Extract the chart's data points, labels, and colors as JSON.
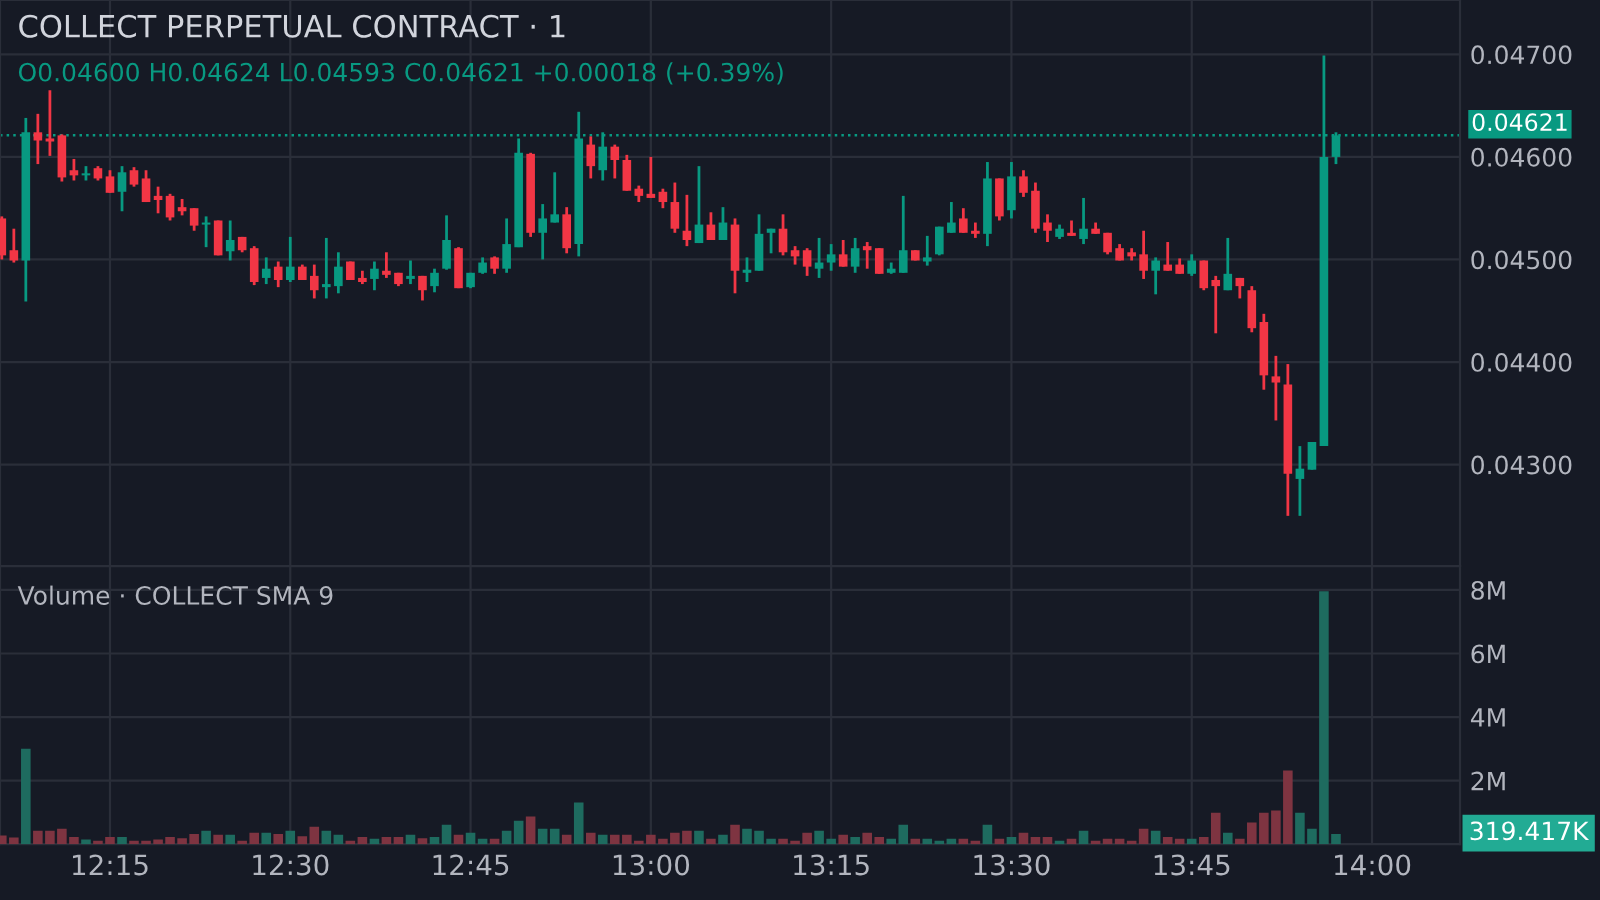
{
  "chart_data": [
    {
      "type": "candlestick",
      "title": "COLLECT PERPETUAL CONTRACT · 1",
      "annotations": [
        "O0.04600 H0.04624 L0.04593 C0.04621 +0.00018 (+0.39%)"
      ],
      "x": [
        12.1,
        12.1167,
        12.1333,
        12.15,
        12.1667,
        12.1833,
        12.2,
        12.2167,
        12.2333,
        12.25,
        12.2667,
        12.2833,
        12.3,
        12.3167,
        12.3333,
        12.35,
        12.3667,
        12.3833,
        12.4,
        12.4167,
        12.4333,
        12.45,
        12.4667,
        12.4833,
        12.5,
        12.5167,
        12.5333,
        12.55,
        12.5667,
        12.5833,
        12.6,
        12.6167,
        12.6333,
        12.65,
        12.6667,
        12.6833,
        12.7,
        12.7167,
        12.7333,
        12.75,
        12.7667,
        12.7833,
        12.8,
        12.8167,
        12.8333,
        12.85,
        12.8667,
        12.8833,
        12.9,
        12.9167,
        12.9333,
        12.95,
        12.9667,
        12.9833,
        13,
        13.0167,
        13.0333,
        13.05,
        13.0667,
        13.0833,
        13.1,
        13.1167,
        13.1333,
        13.15,
        13.1667,
        13.1833,
        13.2,
        13.2167,
        13.2333,
        13.25,
        13.2667,
        13.2833,
        13.3,
        13.3167,
        13.3333,
        13.35,
        13.3667,
        13.3833,
        13.4,
        13.4167,
        13.4333,
        13.45,
        13.4667,
        13.4833,
        13.5,
        13.5167,
        13.5333,
        13.55,
        13.5667,
        13.5833,
        13.6,
        13.6167,
        13.6333,
        13.65,
        13.6667,
        13.6833,
        13.7,
        13.7167,
        13.7333,
        13.75,
        13.7667,
        13.7833,
        13.8,
        13.8167,
        13.8333,
        13.85,
        13.8667,
        13.8833,
        13.9,
        13.9167,
        13.9333,
        13.95
      ],
      "ohlc": [
        [
          0.0454,
          0.04542,
          0.045,
          0.04504
        ],
        [
          0.04509,
          0.0453,
          0.04497,
          0.04499
        ],
        [
          0.04499,
          0.04638,
          0.04459,
          0.04624
        ],
        [
          0.04624,
          0.04642,
          0.04593,
          0.04616
        ],
        [
          0.04618,
          0.04665,
          0.04601,
          0.04615
        ],
        [
          0.04621,
          0.04622,
          0.04576,
          0.0458
        ],
        [
          0.04587,
          0.04598,
          0.04577,
          0.04582
        ],
        [
          0.04582,
          0.04591,
          0.04577,
          0.04584
        ],
        [
          0.04589,
          0.04591,
          0.04577,
          0.04579
        ],
        [
          0.04581,
          0.04587,
          0.04565,
          0.04565
        ],
        [
          0.04566,
          0.04591,
          0.04547,
          0.04585
        ],
        [
          0.04587,
          0.0459,
          0.04571,
          0.04573
        ],
        [
          0.04579,
          0.04587,
          0.04556,
          0.04556
        ],
        [
          0.04562,
          0.04571,
          0.04545,
          0.04558
        ],
        [
          0.04562,
          0.04564,
          0.04538,
          0.04541
        ],
        [
          0.04551,
          0.04559,
          0.04543,
          0.04547
        ],
        [
          0.0455,
          0.0455,
          0.04528,
          0.04533
        ],
        [
          0.04534,
          0.04542,
          0.04512,
          0.04536
        ],
        [
          0.04538,
          0.04538,
          0.04504,
          0.04504
        ],
        [
          0.04508,
          0.04538,
          0.04499,
          0.04519
        ],
        [
          0.04522,
          0.04522,
          0.04507,
          0.04509
        ],
        [
          0.04511,
          0.04513,
          0.04475,
          0.04478
        ],
        [
          0.04482,
          0.04502,
          0.04476,
          0.04491
        ],
        [
          0.04493,
          0.04498,
          0.04473,
          0.0448
        ],
        [
          0.0448,
          0.04522,
          0.04478,
          0.04493
        ],
        [
          0.04493,
          0.04495,
          0.0448,
          0.0448
        ],
        [
          0.04484,
          0.04495,
          0.04462,
          0.0447
        ],
        [
          0.04473,
          0.04521,
          0.04462,
          0.04476
        ],
        [
          0.04474,
          0.04507,
          0.04467,
          0.04493
        ],
        [
          0.04498,
          0.04498,
          0.0448,
          0.0448
        ],
        [
          0.04482,
          0.04489,
          0.04476,
          0.04478
        ],
        [
          0.04481,
          0.04498,
          0.0447,
          0.04491
        ],
        [
          0.04489,
          0.04507,
          0.04482,
          0.04485
        ],
        [
          0.04487,
          0.04487,
          0.04474,
          0.04476
        ],
        [
          0.04481,
          0.04499,
          0.04476,
          0.04484
        ],
        [
          0.04484,
          0.04484,
          0.0446,
          0.0447
        ],
        [
          0.04474,
          0.04491,
          0.04468,
          0.04487
        ],
        [
          0.04491,
          0.04543,
          0.0449,
          0.04519
        ],
        [
          0.04511,
          0.04512,
          0.04472,
          0.04472
        ],
        [
          0.04473,
          0.04487,
          0.04472,
          0.04487
        ],
        [
          0.04487,
          0.04502,
          0.04486,
          0.04497
        ],
        [
          0.04502,
          0.04503,
          0.04486,
          0.04491
        ],
        [
          0.04491,
          0.0454,
          0.04487,
          0.04515
        ],
        [
          0.04512,
          0.04618,
          0.04512,
          0.04604
        ],
        [
          0.04603,
          0.04604,
          0.04522,
          0.04526
        ],
        [
          0.04526,
          0.04554,
          0.045,
          0.0454
        ],
        [
          0.04536,
          0.04585,
          0.04536,
          0.04544
        ],
        [
          0.04544,
          0.04551,
          0.04506,
          0.04511
        ],
        [
          0.04515,
          0.04644,
          0.04503,
          0.04618
        ],
        [
          0.04612,
          0.0462,
          0.04579,
          0.04591
        ],
        [
          0.04587,
          0.04624,
          0.04577,
          0.0461
        ],
        [
          0.0461,
          0.04612,
          0.04579,
          0.04597
        ],
        [
          0.04597,
          0.04602,
          0.04567,
          0.04567
        ],
        [
          0.04569,
          0.04572,
          0.04556,
          0.04562
        ],
        [
          0.04564,
          0.046,
          0.0456,
          0.0456
        ],
        [
          0.04566,
          0.04569,
          0.0455,
          0.04556
        ],
        [
          0.04556,
          0.04575,
          0.04526,
          0.0453
        ],
        [
          0.04528,
          0.04563,
          0.04513,
          0.04519
        ],
        [
          0.04516,
          0.04591,
          0.04516,
          0.04534
        ],
        [
          0.04534,
          0.04546,
          0.04519,
          0.04519
        ],
        [
          0.04519,
          0.04551,
          0.04519,
          0.04536
        ],
        [
          0.04534,
          0.0454,
          0.04467,
          0.04489
        ],
        [
          0.04487,
          0.04502,
          0.04478,
          0.0449
        ],
        [
          0.04489,
          0.04544,
          0.04489,
          0.04525
        ],
        [
          0.04526,
          0.0453,
          0.04506,
          0.0453
        ],
        [
          0.0453,
          0.04544,
          0.04504,
          0.04507
        ],
        [
          0.04509,
          0.04513,
          0.04495,
          0.04503
        ],
        [
          0.04509,
          0.04511,
          0.04484,
          0.04493
        ],
        [
          0.04491,
          0.04521,
          0.04482,
          0.04497
        ],
        [
          0.04497,
          0.04515,
          0.04489,
          0.04505
        ],
        [
          0.04505,
          0.04519,
          0.04493,
          0.04493
        ],
        [
          0.04493,
          0.04521,
          0.04487,
          0.04511
        ],
        [
          0.04513,
          0.04517,
          0.04491,
          0.04509
        ],
        [
          0.04511,
          0.04511,
          0.04486,
          0.04486
        ],
        [
          0.04487,
          0.04497,
          0.04486,
          0.04491
        ],
        [
          0.04487,
          0.04562,
          0.04487,
          0.04509
        ],
        [
          0.04509,
          0.04509,
          0.04499,
          0.04499
        ],
        [
          0.04498,
          0.04523,
          0.04494,
          0.04502
        ],
        [
          0.04505,
          0.04532,
          0.04504,
          0.04532
        ],
        [
          0.04526,
          0.04556,
          0.04526,
          0.04536
        ],
        [
          0.0454,
          0.0455,
          0.04526,
          0.04526
        ],
        [
          0.04528,
          0.04536,
          0.04521,
          0.04525
        ],
        [
          0.04525,
          0.04595,
          0.04513,
          0.04579
        ],
        [
          0.04579,
          0.04579,
          0.04538,
          0.04542
        ],
        [
          0.04548,
          0.04595,
          0.0454,
          0.04581
        ],
        [
          0.04581,
          0.04587,
          0.04561,
          0.04565
        ],
        [
          0.04567,
          0.04575,
          0.04526,
          0.0453
        ],
        [
          0.04536,
          0.04544,
          0.04517,
          0.04528
        ],
        [
          0.04522,
          0.04534,
          0.0452,
          0.0453
        ],
        [
          0.04526,
          0.04538,
          0.04523,
          0.04523
        ],
        [
          0.0452,
          0.0456,
          0.04515,
          0.0453
        ],
        [
          0.0453,
          0.04536,
          0.04525,
          0.04525
        ],
        [
          0.04526,
          0.04526,
          0.04505,
          0.04507
        ],
        [
          0.04511,
          0.04515,
          0.04499,
          0.04499
        ],
        [
          0.04507,
          0.04511,
          0.04499,
          0.04503
        ],
        [
          0.04505,
          0.04528,
          0.04481,
          0.04489
        ],
        [
          0.04489,
          0.04502,
          0.04466,
          0.04499
        ],
        [
          0.04495,
          0.04517,
          0.04489,
          0.04489
        ],
        [
          0.04495,
          0.04501,
          0.04486,
          0.04486
        ],
        [
          0.04486,
          0.04505,
          0.04484,
          0.04499
        ],
        [
          0.04499,
          0.04499,
          0.0447,
          0.04472
        ],
        [
          0.0448,
          0.04484,
          0.04428,
          0.04474
        ],
        [
          0.0447,
          0.04521,
          0.0447,
          0.04486
        ],
        [
          0.04482,
          0.04482,
          0.04462,
          0.04474
        ],
        [
          0.0447,
          0.04474,
          0.04429,
          0.04433
        ],
        [
          0.04439,
          0.04447,
          0.04373,
          0.04387
        ],
        [
          0.04386,
          0.04406,
          0.04343,
          0.0438
        ],
        [
          0.04378,
          0.04398,
          0.0425,
          0.04291
        ],
        [
          0.04286,
          0.04318,
          0.0425,
          0.04296
        ],
        [
          0.04295,
          0.04322,
          0.04295,
          0.04322
        ],
        [
          0.04318,
          0.04699,
          0.04318,
          0.046
        ],
        [
          0.046,
          0.04624,
          0.04593,
          0.04621
        ]
      ],
      "colors": [
        "#f23645",
        "#f23645",
        "#089981",
        "#f23645",
        "#f23645",
        "#f23645",
        "#f23645",
        "#089981",
        "#f23645",
        "#f23645",
        "#089981",
        "#f23645",
        "#f23645",
        "#f23645",
        "#f23645",
        "#f23645",
        "#f23645",
        "#089981",
        "#f23645",
        "#089981",
        "#f23645",
        "#f23645",
        "#089981",
        "#f23645",
        "#089981",
        "#f23645",
        "#f23645",
        "#089981",
        "#089981",
        "#f23645",
        "#f23645",
        "#089981",
        "#f23645",
        "#f23645",
        "#089981",
        "#f23645",
        "#089981",
        "#089981",
        "#f23645",
        "#089981",
        "#089981",
        "#f23645",
        "#089981",
        "#089981",
        "#f23645",
        "#089981",
        "#089981",
        "#f23645",
        "#089981",
        "#f23645",
        "#089981",
        "#f23645",
        "#f23645",
        "#f23645",
        "#f23645",
        "#f23645",
        "#f23645",
        "#f23645",
        "#089981",
        "#f23645",
        "#089981",
        "#f23645",
        "#089981",
        "#089981",
        "#089981",
        "#f23645",
        "#f23645",
        "#f23645",
        "#089981",
        "#089981",
        "#f23645",
        "#089981",
        "#f23645",
        "#f23645",
        "#089981",
        "#089981",
        "#f23645",
        "#089981",
        "#089981",
        "#089981",
        "#f23645",
        "#f23645",
        "#089981",
        "#f23645",
        "#089981",
        "#f23645",
        "#f23645",
        "#f23645",
        "#089981",
        "#f23645",
        "#089981",
        "#f23645",
        "#f23645",
        "#f23645",
        "#f23645",
        "#f23645",
        "#089981",
        "#f23645",
        "#f23645",
        "#089981",
        "#f23645",
        "#f23645",
        "#089981",
        "#f23645",
        "#f23645",
        "#f23645",
        "#f23645",
        "#f23645",
        "#089981",
        "#089981",
        "#089981",
        "#089981"
      ],
      "xlim": [
        12.0975,
        14.122
      ],
      "ylim": [
        0.04201,
        0.04753
      ],
      "yticks": [
        {
          "value": 0.043,
          "label": "0.04300"
        },
        {
          "value": 0.044,
          "label": "0.04400"
        },
        {
          "value": 0.045,
          "label": "0.04500"
        },
        {
          "value": 0.046,
          "label": "0.04600"
        },
        {
          "value": 0.047,
          "label": "0.04700"
        }
      ],
      "ref_lines": [
        {
          "axis": "y",
          "value": 0.04621,
          "label": "0.04621",
          "color": "#089981",
          "line_style": "dotted"
        }
      ],
      "grid": true,
      "legend": false,
      "tick_labels": "y"
    },
    {
      "type": "bar",
      "title": "Volume · COLLECT SMA 9",
      "x": [
        12.1,
        12.1167,
        12.1333,
        12.15,
        12.1667,
        12.1833,
        12.2,
        12.2167,
        12.2333,
        12.25,
        12.2667,
        12.2833,
        12.3,
        12.3167,
        12.3333,
        12.35,
        12.3667,
        12.3833,
        12.4,
        12.4167,
        12.4333,
        12.45,
        12.4667,
        12.4833,
        12.5,
        12.5167,
        12.5333,
        12.55,
        12.5667,
        12.5833,
        12.6,
        12.6167,
        12.6333,
        12.65,
        12.6667,
        12.6833,
        12.7,
        12.7167,
        12.7333,
        12.75,
        12.7667,
        12.7833,
        12.8,
        12.8167,
        12.8333,
        12.85,
        12.8667,
        12.8833,
        12.9,
        12.9167,
        12.9333,
        12.95,
        12.9667,
        12.9833,
        13,
        13.0167,
        13.0333,
        13.05,
        13.0667,
        13.0833,
        13.1,
        13.1167,
        13.1333,
        13.15,
        13.1667,
        13.1833,
        13.2,
        13.2167,
        13.2333,
        13.25,
        13.2667,
        13.2833,
        13.3,
        13.3167,
        13.3333,
        13.35,
        13.3667,
        13.3833,
        13.4,
        13.4167,
        13.4333,
        13.45,
        13.4667,
        13.4833,
        13.5,
        13.5167,
        13.5333,
        13.55,
        13.5667,
        13.5833,
        13.6,
        13.6167,
        13.6333,
        13.65,
        13.6667,
        13.6833,
        13.7,
        13.7167,
        13.7333,
        13.75,
        13.7667,
        13.7833,
        13.8,
        13.8167,
        13.8333,
        13.85,
        13.8667,
        13.8833,
        13.9,
        13.9167,
        13.9333,
        13.95
      ],
      "values": [
        0.27,
        0.21,
        3.0,
        0.42,
        0.42,
        0.49,
        0.23,
        0.15,
        0.11,
        0.23,
        0.23,
        0.11,
        0.11,
        0.15,
        0.23,
        0.19,
        0.32,
        0.42,
        0.3,
        0.3,
        0.11,
        0.36,
        0.36,
        0.32,
        0.42,
        0.25,
        0.55,
        0.42,
        0.3,
        0.11,
        0.23,
        0.17,
        0.23,
        0.23,
        0.3,
        0.19,
        0.23,
        0.61,
        0.3,
        0.36,
        0.17,
        0.17,
        0.42,
        0.74,
        0.87,
        0.49,
        0.49,
        0.3,
        1.31,
        0.36,
        0.3,
        0.3,
        0.3,
        0.11,
        0.3,
        0.17,
        0.36,
        0.42,
        0.42,
        0.17,
        0.3,
        0.61,
        0.49,
        0.42,
        0.17,
        0.17,
        0.11,
        0.36,
        0.42,
        0.17,
        0.3,
        0.23,
        0.36,
        0.23,
        0.17,
        0.61,
        0.17,
        0.17,
        0.11,
        0.17,
        0.17,
        0.11,
        0.61,
        0.17,
        0.23,
        0.36,
        0.23,
        0.23,
        0.11,
        0.17,
        0.42,
        0.11,
        0.17,
        0.17,
        0.11,
        0.49,
        0.42,
        0.23,
        0.17,
        0.17,
        0.23,
        0.99,
        0.36,
        0.17,
        0.68,
        0.99,
        1.06,
        2.32,
        0.99,
        0.49,
        7.96,
        0.32
      ],
      "annotations": [
        "319.417K"
      ],
      "colors": [
        "#7e3441",
        "#7e3441",
        "#1e6b5f",
        "#7e3441",
        "#7e3441",
        "#7e3441",
        "#7e3441",
        "#1e6b5f",
        "#7e3441",
        "#7e3441",
        "#1e6b5f",
        "#7e3441",
        "#7e3441",
        "#7e3441",
        "#7e3441",
        "#7e3441",
        "#7e3441",
        "#1e6b5f",
        "#7e3441",
        "#1e6b5f",
        "#7e3441",
        "#7e3441",
        "#1e6b5f",
        "#7e3441",
        "#1e6b5f",
        "#7e3441",
        "#7e3441",
        "#1e6b5f",
        "#1e6b5f",
        "#7e3441",
        "#7e3441",
        "#1e6b5f",
        "#7e3441",
        "#7e3441",
        "#1e6b5f",
        "#7e3441",
        "#1e6b5f",
        "#1e6b5f",
        "#7e3441",
        "#1e6b5f",
        "#1e6b5f",
        "#7e3441",
        "#1e6b5f",
        "#1e6b5f",
        "#7e3441",
        "#1e6b5f",
        "#1e6b5f",
        "#7e3441",
        "#1e6b5f",
        "#7e3441",
        "#1e6b5f",
        "#7e3441",
        "#7e3441",
        "#7e3441",
        "#7e3441",
        "#7e3441",
        "#7e3441",
        "#7e3441",
        "#1e6b5f",
        "#7e3441",
        "#1e6b5f",
        "#7e3441",
        "#1e6b5f",
        "#1e6b5f",
        "#1e6b5f",
        "#7e3441",
        "#7e3441",
        "#7e3441",
        "#1e6b5f",
        "#1e6b5f",
        "#7e3441",
        "#1e6b5f",
        "#7e3441",
        "#7e3441",
        "#1e6b5f",
        "#1e6b5f",
        "#7e3441",
        "#1e6b5f",
        "#1e6b5f",
        "#1e6b5f",
        "#7e3441",
        "#7e3441",
        "#1e6b5f",
        "#7e3441",
        "#1e6b5f",
        "#7e3441",
        "#7e3441",
        "#7e3441",
        "#1e6b5f",
        "#7e3441",
        "#1e6b5f",
        "#7e3441",
        "#7e3441",
        "#7e3441",
        "#7e3441",
        "#7e3441",
        "#1e6b5f",
        "#7e3441",
        "#7e3441",
        "#1e6b5f",
        "#7e3441",
        "#7e3441",
        "#1e6b5f",
        "#7e3441",
        "#7e3441",
        "#7e3441",
        "#7e3441",
        "#7e3441",
        "#1e6b5f",
        "#1e6b5f",
        "#1e6b5f",
        "#1e6b5f"
      ],
      "xlim": [
        12.0975,
        14.122
      ],
      "ylim": [
        0,
        8.75
      ],
      "xticks": [
        {
          "value": 12.25,
          "label": "12:15"
        },
        {
          "value": 12.5,
          "label": "12:30"
        },
        {
          "value": 12.75,
          "label": "12:45"
        },
        {
          "value": 13,
          "label": "13:00"
        },
        {
          "value": 13.25,
          "label": "13:15"
        },
        {
          "value": 13.5,
          "label": "13:30"
        },
        {
          "value": 13.75,
          "label": "13:45"
        },
        {
          "value": 14,
          "label": "14:00"
        }
      ],
      "yticks": [
        {
          "value": 2,
          "label": "2M"
        },
        {
          "value": 4,
          "label": "4M"
        },
        {
          "value": 6,
          "label": "6M"
        },
        {
          "value": 8,
          "label": "8M"
        }
      ],
      "grid": true,
      "legend": false
    }
  ]
}
